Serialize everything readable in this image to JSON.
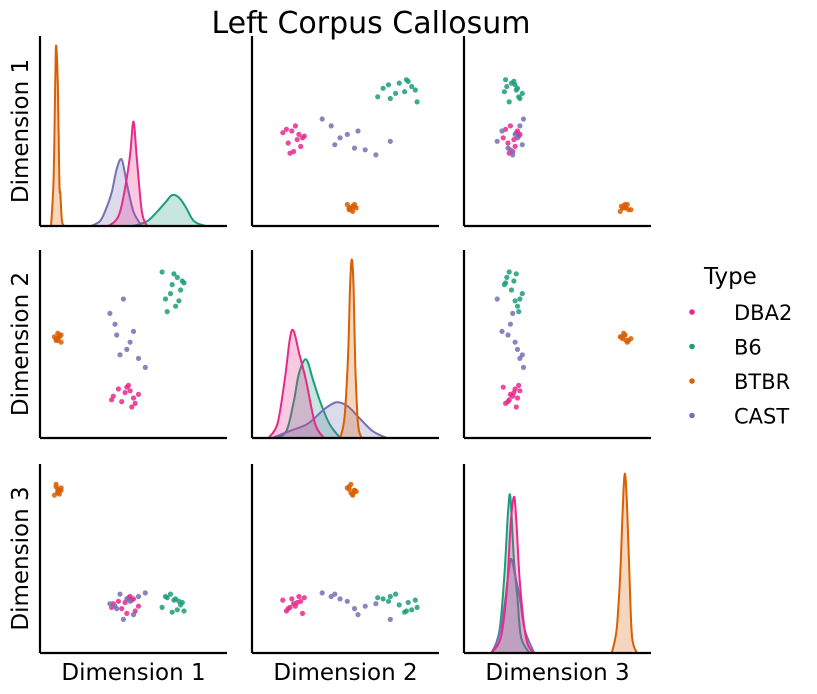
{
  "chart_data": {
    "type": "scatter",
    "title": "Left Corpus Callosum",
    "variables": [
      "Dimension 1",
      "Dimension 2",
      "Dimension 3"
    ],
    "legend": {
      "title": "Type",
      "position": "right"
    },
    "grid": false,
    "series": [
      {
        "name": "DBA2",
        "color": "#e7298a",
        "fill": "#f4a3c8",
        "points": [
          [
            0.05,
            -0.25,
            0.04
          ],
          [
            0.0,
            -0.22,
            0.01
          ],
          [
            -0.04,
            -0.2,
            0.02
          ],
          [
            -0.08,
            -0.26,
            -0.03
          ],
          [
            0.06,
            -0.28,
            -0.06
          ],
          [
            0.02,
            -0.18,
            0.05
          ],
          [
            -0.07,
            -0.24,
            0.0
          ],
          [
            0.08,
            -0.23,
            -0.02
          ],
          [
            0.04,
            -0.3,
            0.03
          ],
          [
            -0.02,
            -0.27,
            -0.04
          ],
          [
            0.01,
            -0.19,
            -0.08
          ],
          [
            0.03,
            -0.21,
            0.06
          ]
        ],
        "kde": [
          {
            "axis": "Dimension 1",
            "x": [
              -0.1,
              -0.06,
              -0.03,
              0.0,
              0.03,
              0.05,
              0.07,
              0.1,
              0.13
            ],
            "y": [
              0,
              1,
              3,
              8,
              15,
              22,
              14,
              3,
              0
            ]
          },
          {
            "axis": "Dimension 2",
            "x": [
              -0.38,
              -0.33,
              -0.29,
              -0.26,
              -0.24,
              -0.21,
              -0.17,
              -0.12,
              -0.07
            ],
            "y": [
              0,
              2,
              8,
              14,
              15,
              12,
              8,
              2,
              0
            ]
          },
          {
            "axis": "Dimension 3",
            "x": [
              -0.18,
              -0.1,
              -0.05,
              -0.02,
              0.01,
              0.03,
              0.06,
              0.11,
              0.17
            ],
            "y": [
              0,
              2,
              8,
              16,
              20,
              17,
              9,
              2,
              0
            ]
          }
        ]
      },
      {
        "name": "B6",
        "color": "#1b9e77",
        "fill": "#a9dac9",
        "points": [
          [
            0.28,
            0.38,
            -0.07
          ],
          [
            0.31,
            0.42,
            -0.05
          ],
          [
            0.24,
            0.3,
            0.06
          ],
          [
            0.34,
            0.4,
            0.01
          ],
          [
            0.3,
            0.26,
            0.04
          ],
          [
            0.22,
            0.45,
            -0.03
          ],
          [
            0.27,
            0.33,
            0.08
          ],
          [
            0.33,
            0.35,
            -0.01
          ],
          [
            0.29,
            0.44,
            0.03
          ],
          [
            0.25,
            0.23,
            0.05
          ],
          [
            0.35,
            0.39,
            -0.06
          ],
          [
            0.32,
            0.29,
            0.02
          ]
        ],
        "kde": [
          {
            "axis": "Dimension 1",
            "x": [
              0.05,
              0.13,
              0.19,
              0.24,
              0.28,
              0.32,
              0.36,
              0.41,
              0.48
            ],
            "y": [
              0,
              1,
              3,
              5,
              6.5,
              6,
              4,
              1,
              0
            ]
          },
          {
            "axis": "Dimension 2",
            "x": [
              -0.34,
              -0.28,
              -0.24,
              -0.21,
              -0.17,
              -0.13,
              -0.09,
              -0.04,
              0.02
            ],
            "y": [
              0,
              1,
              5,
              9,
              11,
              8,
              5,
              2,
              0
            ]
          },
          {
            "axis": "Dimension 3",
            "x": [
              -0.17,
              -0.11,
              -0.07,
              -0.04,
              -0.02,
              0.01,
              0.04,
              0.07,
              0.14
            ],
            "y": [
              0,
              3,
              10,
              18,
              20,
              12,
              7,
              2,
              0
            ]
          }
        ]
      },
      {
        "name": "BTBR",
        "color": "#d95f02",
        "fill": "#f6c9a6",
        "points": [
          [
            -0.4,
            0.08,
            0.92
          ],
          [
            -0.41,
            0.07,
            0.97
          ],
          [
            -0.39,
            0.1,
            0.94
          ],
          [
            -0.42,
            0.09,
            0.9
          ],
          [
            -0.38,
            0.06,
            0.96
          ],
          [
            -0.4,
            0.11,
            0.93
          ],
          [
            -0.41,
            0.08,
            0.99
          ],
          [
            -0.39,
            0.09,
            0.91
          ],
          [
            -0.4,
            0.07,
            0.95
          ],
          [
            -0.38,
            0.1,
            0.94
          ]
        ],
        "kde": [
          {
            "axis": "Dimension 1",
            "x": [
              -0.44,
              -0.425,
              -0.415,
              -0.41,
              -0.4,
              -0.39,
              -0.385,
              -0.375,
              -0.36
            ],
            "y": [
              0,
              10,
              30,
              38,
              30,
              9,
              7,
              1,
              0
            ]
          },
          {
            "axis": "Dimension 2",
            "x": [
              0.02,
              0.045,
              0.065,
              0.075,
              0.085,
              0.095,
              0.105,
              0.12,
              0.14
            ],
            "y": [
              0,
              3,
              12,
              21,
              25,
              21,
              10,
              2,
              0
            ]
          },
          {
            "axis": "Dimension 3",
            "x": [
              0.83,
              0.87,
              0.9,
              0.92,
              0.94,
              0.96,
              0.98,
              1.0,
              1.04
            ],
            "y": [
              0,
              3,
              10,
              18,
              23,
              18,
              9,
              2,
              0
            ]
          }
        ]
      },
      {
        "name": "CAST",
        "color": "#7570b3",
        "fill": "#c9c6e2",
        "points": [
          [
            -0.01,
            0.3,
            -0.13
          ],
          [
            -0.05,
            0.1,
            -0.04
          ],
          [
            0.03,
            0.06,
            0.02
          ],
          [
            0.08,
            -0.03,
            0.06
          ],
          [
            -0.06,
            0.16,
            -0.02
          ],
          [
            0.12,
            -0.08,
            0.09
          ],
          [
            -0.09,
            0.22,
            0.0
          ],
          [
            0.01,
            0.02,
            0.04
          ],
          [
            -0.03,
            -0.01,
            0.08
          ],
          [
            0.05,
            0.12,
            -0.09
          ]
        ],
        "kde": [
          {
            "axis": "Dimension 1",
            "x": [
              -0.2,
              -0.15,
              -0.12,
              -0.08,
              -0.05,
              -0.02,
              0.01,
              0.05,
              0.1
            ],
            "y": [
              0,
              1,
              3,
              7,
              12,
              14,
              9,
              3,
              0
            ]
          },
          {
            "axis": "Dimension 2",
            "x": [
              -0.36,
              -0.26,
              -0.16,
              -0.07,
              0.0,
              0.06,
              0.12,
              0.2,
              0.28
            ],
            "y": [
              0,
              1,
              2,
              4,
              5,
              4.5,
              3,
              1,
              0
            ]
          },
          {
            "axis": "Dimension 3",
            "x": [
              -0.18,
              -0.12,
              -0.07,
              -0.03,
              -0.01,
              0.02,
              0.06,
              0.1,
              0.18
            ],
            "y": [
              0,
              2,
              6,
              11,
              12,
              10,
              7,
              3,
              0
            ]
          }
        ]
      }
    ],
    "ranges": {
      "Dimension 1": [
        -0.45,
        0.55
      ],
      "Dimension 2": [
        -0.42,
        0.52
      ],
      "Dimension 3": [
        -0.33,
        1.08
      ]
    }
  }
}
